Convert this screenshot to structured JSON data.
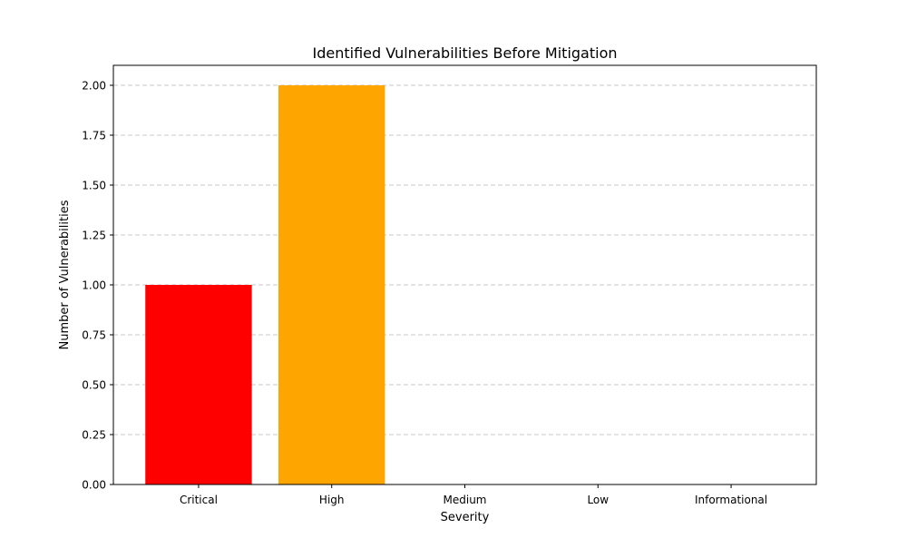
{
  "chart_data": {
    "type": "bar",
    "title": "Identified Vulnerabilities Before Mitigation",
    "xlabel": "Severity",
    "ylabel": "Number of Vulnerabilities",
    "categories": [
      "Critical",
      "High",
      "Medium",
      "Low",
      "Informational"
    ],
    "values": [
      1,
      2,
      0,
      0,
      0
    ],
    "bar_colors": [
      "#ff0000",
      "#ffa500",
      "#ffff00",
      "#008000",
      "#0000ff"
    ],
    "ylim": [
      0,
      2.1
    ],
    "yticks": [
      0.0,
      0.25,
      0.5,
      0.75,
      1.0,
      1.25,
      1.5,
      1.75,
      2.0
    ],
    "ytick_labels": [
      "0.00",
      "0.25",
      "0.50",
      "0.75",
      "1.00",
      "1.25",
      "1.50",
      "1.75",
      "2.00"
    ],
    "grid": "y-dashed",
    "legend": "none"
  }
}
